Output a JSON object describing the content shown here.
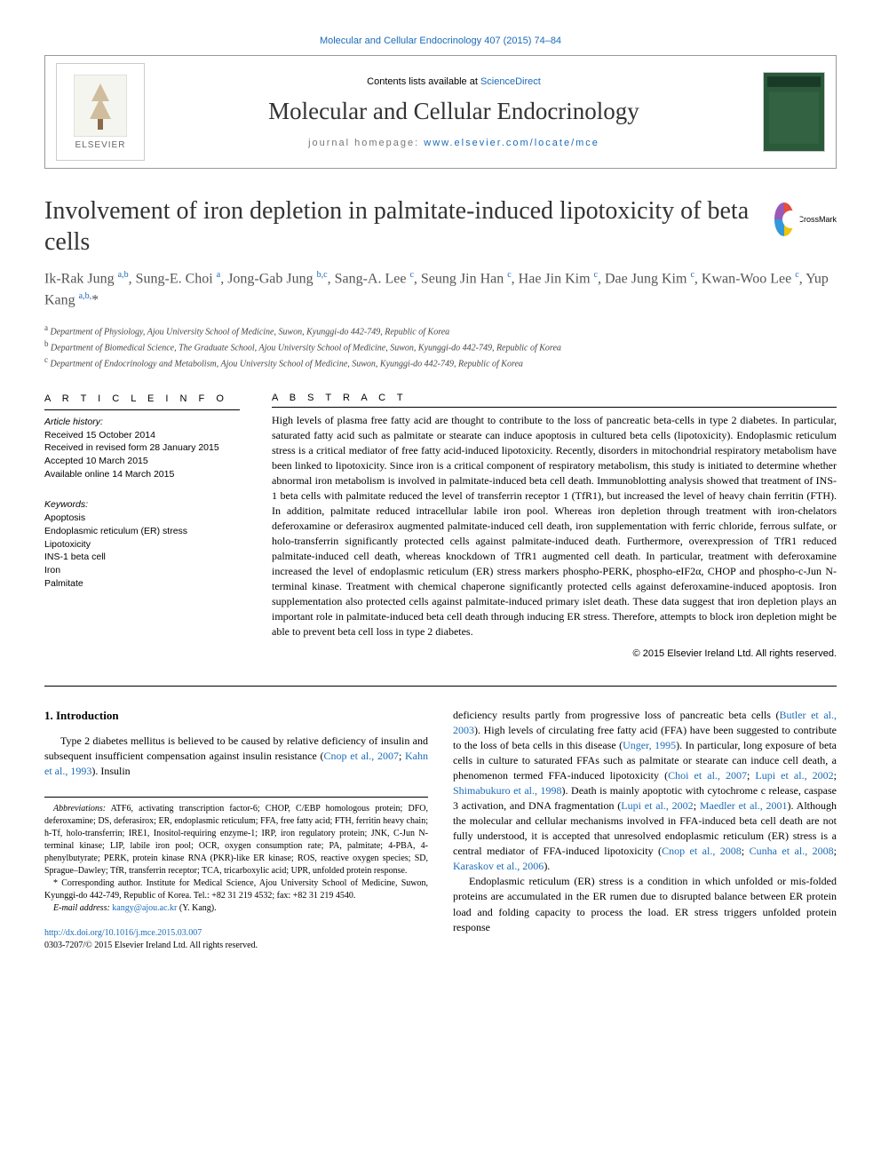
{
  "top_journal_link": "Molecular and Cellular Endocrinology 407 (2015) 74–84",
  "header": {
    "contents_prefix": "Contents lists available at ",
    "contents_link": "ScienceDirect",
    "journal_name": "Molecular and Cellular Endocrinology",
    "homepage_prefix": "journal homepage: ",
    "homepage_link": "www.elsevier.com/locate/mce",
    "publisher_name": "ELSEVIER"
  },
  "crossmark_label": "CrossMark",
  "title": "Involvement of iron depletion in palmitate-induced lipotoxicity of beta cells",
  "authors_html": "Ik-Rak Jung <sup>a,b</sup>, Sung-E. Choi <sup>a</sup>, Jong-Gab Jung <sup>b,c</sup>, Sang-A. Lee <sup>c</sup>, Seung Jin Han <sup>c</sup>, Hae Jin Kim <sup>c</sup>, Dae Jung Kim <sup>c</sup>, Kwan-Woo Lee <sup>c</sup>, Yup Kang <sup>a,b,</sup>*",
  "affiliations": {
    "a": "Department of Physiology, Ajou University School of Medicine, Suwon, Kyunggi-do 442-749, Republic of Korea",
    "b": "Department of Biomedical Science, The Graduate School, Ajou University School of Medicine, Suwon, Kyunggi-do 442-749, Republic of Korea",
    "c": "Department of Endocrinology and Metabolism, Ajou University School of Medicine, Suwon, Kyunggi-do 442-749, Republic of Korea"
  },
  "article_info": {
    "heading": "A R T I C L E   I N F O",
    "history_label": "Article history:",
    "received": "Received 15 October 2014",
    "revised": "Received in revised form 28 January 2015",
    "accepted": "Accepted 10 March 2015",
    "online": "Available online 14 March 2015",
    "keywords_label": "Keywords:",
    "keywords": [
      "Apoptosis",
      "Endoplasmic reticulum (ER) stress",
      "Lipotoxicity",
      "INS-1 beta cell",
      "Iron",
      "Palmitate"
    ]
  },
  "abstract": {
    "heading": "A B S T R A C T",
    "text": "High levels of plasma free fatty acid are thought to contribute to the loss of pancreatic beta-cells in type 2 diabetes. In particular, saturated fatty acid such as palmitate or stearate can induce apoptosis in cultured beta cells (lipotoxicity). Endoplasmic reticulum stress is a critical mediator of free fatty acid-induced lipotoxicity. Recently, disorders in mitochondrial respiratory metabolism have been linked to lipotoxicity. Since iron is a critical component of respiratory metabolism, this study is initiated to determine whether abnormal iron metabolism is involved in palmitate-induced beta cell death. Immunoblotting analysis showed that treatment of INS-1 beta cells with palmitate reduced the level of transferrin receptor 1 (TfR1), but increased the level of heavy chain ferritin (FTH). In addition, palmitate reduced intracellular labile iron pool. Whereas iron depletion through treatment with iron-chelators deferoxamine or deferasirox augmented palmitate-induced cell death, iron supplementation with ferric chloride, ferrous sulfate, or holo-transferrin significantly protected cells against palmitate-induced death. Furthermore, overexpression of TfR1 reduced palmitate-induced cell death, whereas knockdown of TfR1 augmented cell death. In particular, treatment with deferoxamine increased the level of endoplasmic reticulum (ER) stress markers phospho-PERK, phospho-eIF2α, CHOP and phospho-c-Jun N-terminal kinase. Treatment with chemical chaperone significantly protected cells against deferoxamine-induced apoptosis. Iron supplementation also protected cells against palmitate-induced primary islet death. These data suggest that iron depletion plays an important role in palmitate-induced beta cell death through inducing ER stress. Therefore, attempts to block iron depletion might be able to prevent beta cell loss in type 2 diabetes.",
    "copyright": "© 2015 Elsevier Ireland Ltd. All rights reserved."
  },
  "intro": {
    "heading": "1. Introduction",
    "para1_pre": "Type 2 diabetes mellitus is believed to be caused by relative deficiency of insulin and subsequent insufficient compensation against insulin resistance (",
    "para1_link1": "Cnop et al., 2007",
    "para1_mid1": "; ",
    "para1_link2": "Kahn et al., 1993",
    "para1_post": "). Insulin",
    "para1b_pre": "deficiency results partly from progressive loss of pancreatic beta cells (",
    "para1b_link1": "Butler et al., 2003",
    "para1b_mid1": "). High levels of circulating free fatty acid (FFA) have been suggested to contribute to the loss of beta cells in this disease (",
    "para1b_link2": "Unger, 1995",
    "para1b_mid2": "). In particular, long exposure of beta cells in culture to saturated FFAs such as palmitate or stearate can induce cell death, a phenomenon termed FFA-induced lipotoxicity (",
    "para1b_link3": "Choi et al., 2007",
    "para1b_mid3": "; ",
    "para1b_link4": "Lupi et al., 2002",
    "para1b_mid4": "; ",
    "para1b_link5": "Shimabukuro et al., 1998",
    "para1b_mid5": "). Death is mainly apoptotic with cytochrome c release, caspase 3 activation, and DNA fragmentation (",
    "para1b_link6": "Lupi et al., 2002",
    "para1b_mid6": "; ",
    "para1b_link7": "Maedler et al., 2001",
    "para1b_mid7": "). Although the molecular and cellular mechanisms involved in FFA-induced beta cell death are not fully understood, it is accepted that unresolved endoplasmic reticulum (ER) stress is a central mediator of FFA-induced lipotoxicity (",
    "para1b_link8": "Cnop et al., 2008",
    "para1b_mid8": "; ",
    "para1b_link9": "Cunha et al., 2008",
    "para1b_mid9": "; ",
    "para1b_link10": "Karaskov et al., 2006",
    "para1b_post": ").",
    "para2": "Endoplasmic reticulum (ER) stress is a condition in which unfolded or mis-folded proteins are accumulated in the ER rumen due to disrupted balance between ER protein load and folding capacity to process the load. ER stress triggers unfolded protein response"
  },
  "footnotes": {
    "abbrev_label": "Abbreviations:",
    "abbrev_text": " ATF6, activating transcription factor-6; CHOP, C/EBP homologous protein; DFO, deferoxamine; DS, deferasirox; ER, endoplasmic reticulum; FFA, free fatty acid; FTH, ferritin heavy chain; h-Tf, holo-transferrin; IRE1, Inositol-requiring enzyme-1; IRP, iron regulatory protein; JNK, C-Jun N-terminal kinase; LIP, labile iron pool; OCR, oxygen consumption rate; PA, palmitate; 4-PBA, 4-phenylbutyrate; PERK, protein kinase RNA (PKR)-like ER kinase; ROS, reactive oxygen species; SD, Sprague–Dawley; TfR, transferrin receptor; TCA, tricarboxylic acid; UPR, unfolded protein response.",
    "corresponding": "* Corresponding author. Institute for Medical Science, Ajou University School of Medicine, Suwon, Kyunggi-do 442-749, Republic of Korea. Tel.: +82 31 219 4532; fax: +82 31 219 4540.",
    "email_label": "E-mail address: ",
    "email_link": "kangy@ajou.ac.kr",
    "email_suffix": " (Y. Kang)."
  },
  "doi": {
    "link": "http://dx.doi.org/10.1016/j.mce.2015.03.007",
    "issn_line": "0303-7207/© 2015 Elsevier Ireland Ltd. All rights reserved."
  },
  "colors": {
    "link": "#1a6bb8",
    "text": "#000000",
    "muted": "#666666",
    "cover_bg": "#2a5a3a"
  }
}
